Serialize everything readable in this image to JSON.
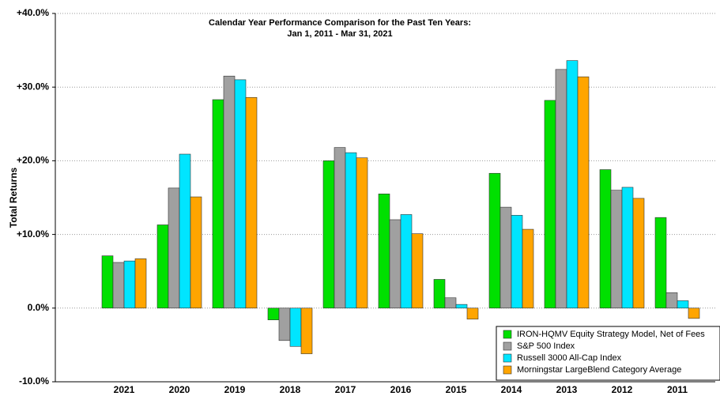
{
  "chart_data": {
    "type": "bar",
    "title": [
      "Calendar Year Performance Comparison for the Past Ten Years:",
      "Jan 1, 2011 - Mar 31, 2021"
    ],
    "ylabel": "Total Returns",
    "categories": [
      "2021",
      "2020",
      "2019",
      "2018",
      "2017",
      "2016",
      "2015",
      "2014",
      "2013",
      "2012",
      "2011"
    ],
    "series": [
      {
        "name": "IRON-HQMV Equity Strategy Model, Net of Fees",
        "color": "#00e000",
        "values": [
          7.1,
          11.3,
          28.3,
          -1.6,
          20.0,
          15.5,
          3.9,
          18.3,
          28.2,
          18.8,
          12.3
        ]
      },
      {
        "name": "S&P 500 Index",
        "color": "#a0a0a0",
        "values": [
          6.2,
          16.3,
          31.5,
          -4.4,
          21.8,
          12.0,
          1.4,
          13.7,
          32.4,
          16.0,
          2.1
        ]
      },
      {
        "name": "Russell 3000 All-Cap Index",
        "color": "#00e5ff",
        "values": [
          6.4,
          20.9,
          31.0,
          -5.2,
          21.1,
          12.7,
          0.5,
          12.6,
          33.6,
          16.4,
          1.0
        ]
      },
      {
        "name": "Morningstar LargeBlend Category Average",
        "color": "#ffa500",
        "values": [
          6.7,
          15.1,
          28.6,
          -6.2,
          20.4,
          10.1,
          -1.5,
          10.7,
          31.4,
          14.9,
          -1.4
        ]
      }
    ],
    "ylim": [
      -10,
      40
    ],
    "yticks": [
      {
        "value": -10,
        "label": "-10.0%"
      },
      {
        "value": 0,
        "label": "0.0%"
      },
      {
        "value": 10,
        "label": "+10.0%"
      },
      {
        "value": 20,
        "label": "+20.0%"
      },
      {
        "value": 30,
        "label": "+30.0%"
      },
      {
        "value": 40,
        "label": "+40.0%"
      }
    ],
    "grid": true,
    "legend": "lower right"
  }
}
